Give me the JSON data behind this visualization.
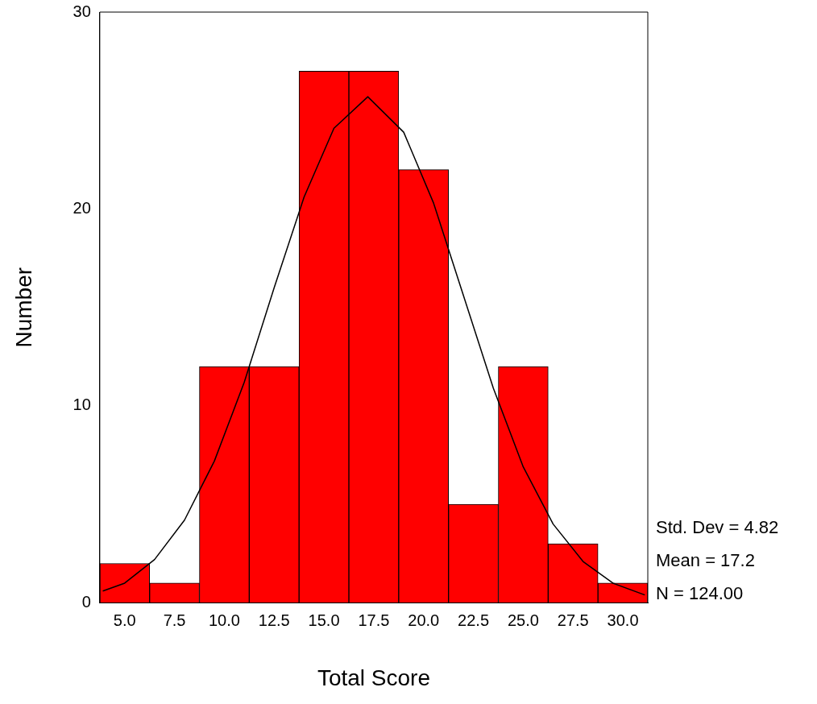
{
  "chart_data": {
    "type": "histogram",
    "xlabel": "Total Score",
    "ylabel": "Number",
    "bins": [
      3.75,
      6.25,
      8.75,
      11.25,
      13.75,
      16.25,
      18.75,
      21.25,
      23.75,
      26.25,
      28.75,
      31.25
    ],
    "values": [
      2,
      1,
      12,
      12,
      27,
      27,
      22,
      5,
      12,
      3,
      1
    ],
    "color": "#ff0000",
    "series": [
      {
        "type": "line",
        "color": "#000000",
        "x": [
          3.9,
          5,
          6.5,
          8,
          9.5,
          11,
          12.5,
          14,
          15.5,
          17.2,
          19,
          20.5,
          22,
          23.5,
          25,
          26.5,
          28,
          29.5,
          31.1
        ],
        "values": [
          0.6,
          1,
          2.2,
          4.2,
          7.2,
          11.2,
          16,
          20.6,
          24.1,
          25.7,
          23.9,
          20.3,
          15.6,
          10.9,
          6.9,
          4,
          2.1,
          1,
          0.4
        ]
      }
    ],
    "xlim": [
      3.75,
      31.25
    ],
    "xticks": [
      {
        "value": 5,
        "label": "5.0"
      },
      {
        "value": 7.5,
        "label": "7.5"
      },
      {
        "value": 10,
        "label": "10.0"
      },
      {
        "value": 12.5,
        "label": "12.5"
      },
      {
        "value": 15,
        "label": "15.0"
      },
      {
        "value": 17.5,
        "label": "17.5"
      },
      {
        "value": 20,
        "label": "20.0"
      },
      {
        "value": 22.5,
        "label": "22.5"
      },
      {
        "value": 25,
        "label": "25.0"
      },
      {
        "value": 27.5,
        "label": "27.5"
      },
      {
        "value": 30,
        "label": "30.0"
      }
    ],
    "ylim": [
      0,
      30
    ],
    "yticks": [
      0,
      10,
      20,
      30
    ],
    "annotations": [
      "Std. Dev = 4.82",
      "Mean = 17.2",
      "N = 124.00"
    ]
  }
}
